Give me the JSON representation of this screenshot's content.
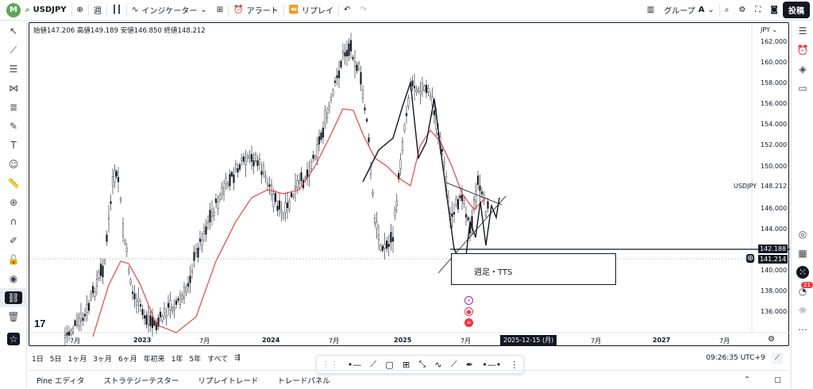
{
  "topbar": {
    "avatar_letter": "M",
    "symbol": "USDJPY",
    "interval": "週",
    "indicators": "インジケーター",
    "alert": "アラート",
    "replay": "リプレイ",
    "group": "グループ",
    "group_letter": "A",
    "post": "投稿"
  },
  "ohlc": "始値147.206 高値149.189 安値146.850 終値148.212",
  "currency": "JPY",
  "y_axis": [
    "162.000",
    "160.000",
    "158.000",
    "156.000",
    "154.000",
    "152.000",
    "150.000",
    "148.212",
    "146.000",
    "144.000",
    "142.188",
    "141.214",
    "140.000",
    "138.000",
    "136.000"
  ],
  "symbol_label": "USDJPY",
  "x_axis": [
    "7月",
    "2023",
    "7月",
    "2024",
    "7月",
    "2025",
    "7月",
    "2025-12-15 (月)",
    "7月",
    "2027",
    "7月"
  ],
  "annotation": "週足・TTS",
  "timeframes": [
    "1日",
    "5日",
    "1ヶ月",
    "3ヶ月",
    "6ヶ月",
    "年初来",
    "1年",
    "5年",
    "すべて"
  ],
  "clock": "09:26:35 UTC+9",
  "bottom_tabs": [
    "Pine エディタ",
    "ストラテジーテスター",
    "リプレイトレード",
    "トレードパネル"
  ],
  "notif_count": "21",
  "colors": {
    "ma_line": "#e53935",
    "candle": "#131722",
    "accent": "#2962ff"
  }
}
